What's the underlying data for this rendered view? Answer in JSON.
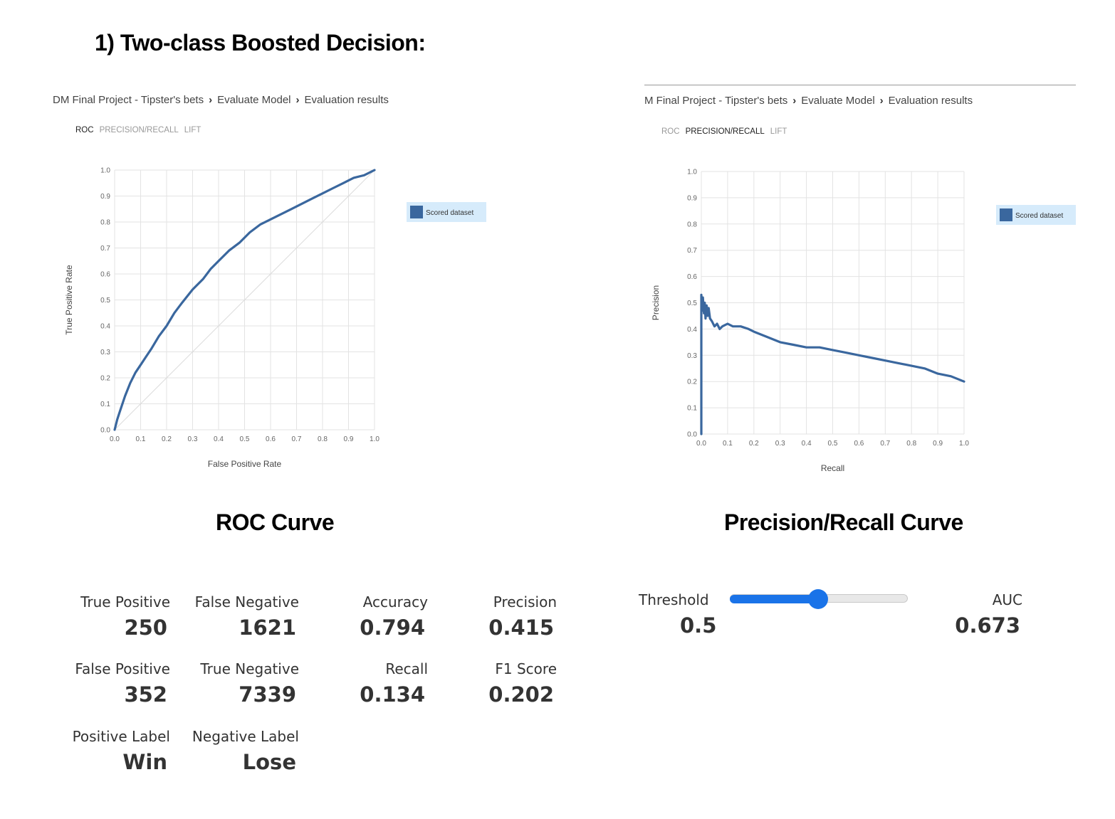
{
  "heading": "1)   Two-class Boosted Decision:",
  "left_panel": {
    "breadcrumb": [
      "DM Final Project - Tipster's bets",
      "Evaluate Model",
      "Evaluation results"
    ],
    "tabs": [
      {
        "label": "ROC",
        "active": true
      },
      {
        "label": "PRECISION/RECALL",
        "active": false
      },
      {
        "label": "LIFT",
        "active": false
      }
    ],
    "caption": "ROC Curve"
  },
  "right_panel": {
    "breadcrumb": [
      "M Final Project - Tipster's bets",
      "Evaluate Model",
      "Evaluation results"
    ],
    "tabs": [
      {
        "label": "ROC",
        "active": false
      },
      {
        "label": "PRECISION/RECALL",
        "active": true
      },
      {
        "label": "LIFT",
        "active": false
      }
    ],
    "caption": "Precision/Recall Curve"
  },
  "chart_data": [
    {
      "type": "line",
      "xlabel": "False Positive Rate",
      "ylabel": "True Positive Rate",
      "xlim": [
        0,
        1
      ],
      "ylim": [
        0,
        1
      ],
      "ticks": [
        "0.0",
        "0.1",
        "0.2",
        "0.3",
        "0.4",
        "0.5",
        "0.6",
        "0.7",
        "0.8",
        "0.9",
        "1.0"
      ],
      "grid": true,
      "legend_position": "right",
      "diagonal_reference": true,
      "series": [
        {
          "name": "Scored dataset",
          "color": "#3a679e",
          "x": [
            0,
            0.01,
            0.02,
            0.04,
            0.06,
            0.08,
            0.1,
            0.12,
            0.14,
            0.17,
            0.2,
            0.23,
            0.26,
            0.3,
            0.34,
            0.37,
            0.4,
            0.44,
            0.48,
            0.52,
            0.56,
            0.6,
            0.64,
            0.68,
            0.72,
            0.76,
            0.8,
            0.84,
            0.88,
            0.92,
            0.96,
            1.0
          ],
          "y": [
            0,
            0.04,
            0.07,
            0.13,
            0.18,
            0.22,
            0.25,
            0.28,
            0.31,
            0.36,
            0.4,
            0.45,
            0.49,
            0.54,
            0.58,
            0.62,
            0.65,
            0.69,
            0.72,
            0.76,
            0.79,
            0.81,
            0.83,
            0.85,
            0.87,
            0.89,
            0.91,
            0.93,
            0.95,
            0.97,
            0.98,
            1.0
          ]
        }
      ]
    },
    {
      "type": "line",
      "xlabel": "Recall",
      "ylabel": "Precision",
      "xlim": [
        0,
        1
      ],
      "ylim": [
        0,
        1
      ],
      "ticks": [
        "0.0",
        "0.1",
        "0.2",
        "0.3",
        "0.4",
        "0.5",
        "0.6",
        "0.7",
        "0.8",
        "0.9",
        "1.0"
      ],
      "grid": true,
      "legend_position": "right",
      "series": [
        {
          "name": "Scored dataset",
          "color": "#3a679e",
          "x": [
            0,
            0,
            0.003,
            0.006,
            0.01,
            0.013,
            0.016,
            0.02,
            0.024,
            0.028,
            0.033,
            0.04,
            0.05,
            0.06,
            0.07,
            0.08,
            0.1,
            0.12,
            0.15,
            0.18,
            0.2,
            0.25,
            0.3,
            0.35,
            0.4,
            0.45,
            0.5,
            0.55,
            0.6,
            0.65,
            0.7,
            0.75,
            0.8,
            0.85,
            0.9,
            0.95,
            1.0
          ],
          "y": [
            0,
            0.53,
            0.47,
            0.52,
            0.46,
            0.5,
            0.44,
            0.49,
            0.45,
            0.48,
            0.44,
            0.43,
            0.41,
            0.42,
            0.4,
            0.41,
            0.42,
            0.41,
            0.41,
            0.4,
            0.39,
            0.37,
            0.35,
            0.34,
            0.33,
            0.33,
            0.32,
            0.31,
            0.3,
            0.29,
            0.28,
            0.27,
            0.26,
            0.25,
            0.23,
            0.22,
            0.2
          ]
        }
      ]
    }
  ],
  "metrics": {
    "true_positive": {
      "label": "True Positive",
      "value": "250"
    },
    "false_negative": {
      "label": "False Negative",
      "value": "1621"
    },
    "accuracy": {
      "label": "Accuracy",
      "value": "0.794"
    },
    "precision": {
      "label": "Precision",
      "value": "0.415"
    },
    "false_positive": {
      "label": "False Positive",
      "value": "352"
    },
    "true_negative": {
      "label": "True Negative",
      "value": "7339"
    },
    "recall": {
      "label": "Recall",
      "value": "0.134"
    },
    "f1_score": {
      "label": "F1 Score",
      "value": "0.202"
    },
    "positive_label": {
      "label": "Positive Label",
      "value": "Win"
    },
    "negative_label": {
      "label": "Negative Label",
      "value": "Lose"
    },
    "threshold": {
      "label": "Threshold",
      "value": "0.5",
      "slider_fraction": 0.5
    },
    "auc": {
      "label": "AUC",
      "value": "0.673"
    }
  },
  "colors": {
    "series": "#3a679e",
    "legend_bg": "#d6ebfb",
    "slider": "#1a73e8"
  }
}
